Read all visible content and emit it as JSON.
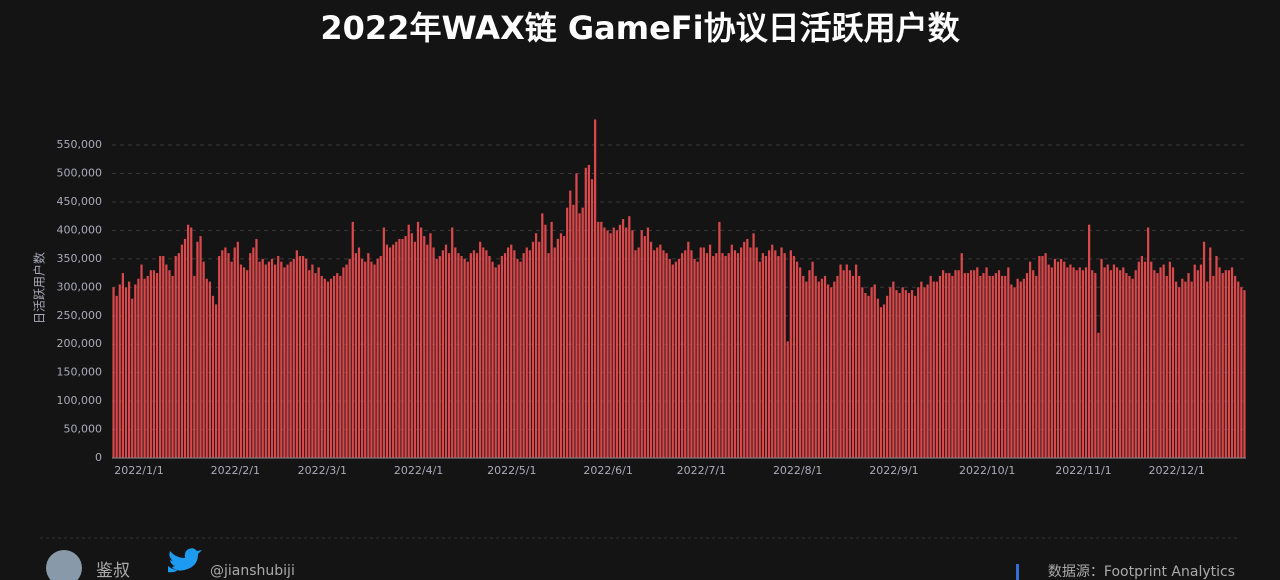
{
  "chart_data": {
    "type": "bar",
    "title": "2022年WAX链 GameFi协议日活跃用户数",
    "y_label": "日活跃用户数",
    "color": "#d9484b",
    "grid": true,
    "categories": [
      "2022/1/1",
      null,
      null,
      null,
      null,
      null,
      null,
      null,
      null,
      null,
      null,
      null,
      null,
      null,
      null,
      null,
      null,
      null,
      null,
      null,
      null,
      null,
      null,
      null,
      null,
      null,
      null,
      null,
      null,
      null,
      null,
      "2022/2/1",
      null,
      null,
      null,
      null,
      null,
      null,
      null,
      null,
      null,
      null,
      null,
      null,
      null,
      null,
      null,
      null,
      null,
      null,
      null,
      null,
      null,
      null,
      null,
      null,
      null,
      null,
      null,
      "2022/3/1",
      null,
      null,
      null,
      null,
      null,
      null,
      null,
      null,
      null,
      null,
      null,
      null,
      null,
      null,
      null,
      null,
      null,
      null,
      null,
      null,
      null,
      null,
      null,
      null,
      null,
      null,
      null,
      null,
      null,
      null,
      "2022/4/1",
      null,
      null,
      null,
      null,
      null,
      null,
      null,
      null,
      null,
      null,
      null,
      null,
      null,
      null,
      null,
      null,
      null,
      null,
      null,
      null,
      null,
      null,
      null,
      null,
      null,
      null,
      null,
      null,
      null,
      "2022/5/1",
      null,
      null,
      null,
      null,
      null,
      null,
      null,
      null,
      null,
      null,
      null,
      null,
      null,
      null,
      null,
      null,
      null,
      null,
      null,
      null,
      null,
      null,
      null,
      null,
      null,
      null,
      null,
      null,
      null,
      null,
      "2022/6/1",
      null,
      null,
      null,
      null,
      null,
      null,
      null,
      null,
      null,
      null,
      null,
      null,
      null,
      null,
      null,
      null,
      null,
      null,
      null,
      null,
      null,
      null,
      null,
      null,
      null,
      null,
      null,
      null,
      null,
      "2022/7/1",
      null,
      null,
      null,
      null,
      null,
      null,
      null,
      null,
      null,
      null,
      null,
      null,
      null,
      null,
      null,
      null,
      null,
      null,
      null,
      null,
      null,
      null,
      null,
      null,
      null,
      null,
      null,
      null,
      null,
      null,
      "2022/8/1",
      null,
      null,
      null,
      null,
      null,
      null,
      null,
      null,
      null,
      null,
      null,
      null,
      null,
      null,
      null,
      null,
      null,
      null,
      null,
      null,
      null,
      null,
      null,
      null,
      null,
      null,
      null,
      null,
      null,
      null,
      "2022/9/1",
      null,
      null,
      null,
      null,
      null,
      null,
      null,
      null,
      null,
      null,
      null,
      null,
      null,
      null,
      null,
      null,
      null,
      null,
      null,
      null,
      null,
      null,
      null,
      null,
      null,
      null,
      null,
      null,
      null,
      "2022/10/1",
      null,
      null,
      null,
      null,
      null,
      null,
      null,
      null,
      null,
      null,
      null,
      null,
      null,
      null,
      null,
      null,
      null,
      null,
      null,
      null,
      null,
      null,
      null,
      null,
      null,
      null,
      null,
      null,
      null,
      null,
      "2022/11/1",
      null,
      null,
      null,
      null,
      null,
      null,
      null,
      null,
      null,
      null,
      null,
      null,
      null,
      null,
      null,
      null,
      null,
      null,
      null,
      null,
      null,
      null,
      null,
      null,
      null,
      null,
      null,
      null,
      null,
      "2022/12/1",
      null,
      null,
      null,
      null,
      null,
      null,
      null,
      null,
      null,
      null,
      null,
      null,
      null,
      null,
      null,
      null,
      null,
      null,
      null,
      null,
      null,
      null,
      null,
      null,
      null,
      null,
      null,
      null,
      null,
      null
    ],
    "values": [
      300000,
      285000,
      305000,
      325000,
      300000,
      310000,
      280000,
      305000,
      315000,
      340000,
      315000,
      320000,
      330000,
      330000,
      325000,
      355000,
      355000,
      340000,
      330000,
      320000,
      355000,
      360000,
      375000,
      385000,
      410000,
      405000,
      320000,
      380000,
      390000,
      345000,
      315000,
      310000,
      285000,
      270000,
      355000,
      365000,
      370000,
      360000,
      345000,
      370000,
      380000,
      340000,
      335000,
      330000,
      360000,
      370000,
      385000,
      345000,
      350000,
      340000,
      345000,
      350000,
      340000,
      355000,
      345000,
      335000,
      340000,
      345000,
      350000,
      365000,
      355000,
      355000,
      350000,
      330000,
      340000,
      325000,
      335000,
      320000,
      315000,
      310000,
      315000,
      320000,
      325000,
      320000,
      335000,
      340000,
      350000,
      415000,
      360000,
      370000,
      350000,
      345000,
      360000,
      345000,
      340000,
      350000,
      355000,
      405000,
      375000,
      370000,
      375000,
      380000,
      385000,
      385000,
      390000,
      410000,
      395000,
      380000,
      415000,
      405000,
      390000,
      375000,
      395000,
      370000,
      350000,
      355000,
      365000,
      375000,
      360000,
      405000,
      370000,
      360000,
      355000,
      350000,
      345000,
      360000,
      365000,
      360000,
      380000,
      370000,
      365000,
      355000,
      345000,
      335000,
      340000,
      355000,
      360000,
      370000,
      375000,
      365000,
      350000,
      345000,
      360000,
      370000,
      365000,
      380000,
      395000,
      380000,
      430000,
      410000,
      360000,
      415000,
      370000,
      385000,
      395000,
      390000,
      440000,
      470000,
      445000,
      500000,
      430000,
      440000,
      510000,
      515000,
      490000,
      595000,
      415000,
      415000,
      405000,
      400000,
      395000,
      405000,
      400000,
      410000,
      420000,
      405000,
      425000,
      400000,
      365000,
      370000,
      400000,
      390000,
      405000,
      380000,
      365000,
      370000,
      375000,
      365000,
      360000,
      350000,
      340000,
      345000,
      350000,
      360000,
      365000,
      380000,
      365000,
      350000,
      345000,
      370000,
      370000,
      360000,
      375000,
      355000,
      360000,
      415000,
      360000,
      355000,
      360000,
      375000,
      365000,
      360000,
      370000,
      380000,
      385000,
      370000,
      395000,
      370000,
      345000,
      360000,
      355000,
      365000,
      375000,
      365000,
      355000,
      370000,
      360000,
      205000,
      365000,
      355000,
      345000,
      335000,
      320000,
      310000,
      330000,
      345000,
      320000,
      310000,
      315000,
      320000,
      305000,
      300000,
      310000,
      320000,
      340000,
      330000,
      340000,
      330000,
      320000,
      340000,
      320000,
      300000,
      290000,
      285000,
      300000,
      305000,
      280000,
      265000,
      270000,
      285000,
      300000,
      310000,
      295000,
      290000,
      300000,
      295000,
      290000,
      295000,
      285000,
      300000,
      310000,
      300000,
      305000,
      320000,
      310000,
      310000,
      320000,
      330000,
      325000,
      325000,
      320000,
      330000,
      330000,
      360000,
      325000,
      325000,
      330000,
      330000,
      335000,
      320000,
      325000,
      335000,
      320000,
      320000,
      325000,
      330000,
      320000,
      320000,
      335000,
      305000,
      300000,
      315000,
      310000,
      315000,
      325000,
      345000,
      330000,
      320000,
      355000,
      355000,
      360000,
      340000,
      335000,
      350000,
      345000,
      350000,
      345000,
      335000,
      340000,
      335000,
      330000,
      335000,
      330000,
      335000,
      410000,
      330000,
      325000,
      220000,
      350000,
      335000,
      340000,
      330000,
      340000,
      335000,
      330000,
      335000,
      325000,
      320000,
      315000,
      330000,
      345000,
      355000,
      345000,
      405000,
      345000,
      330000,
      325000,
      335000,
      340000,
      320000,
      345000,
      335000,
      310000,
      300000,
      315000,
      310000,
      325000,
      310000,
      340000,
      330000,
      340000,
      380000,
      310000,
      370000,
      320000,
      355000,
      335000,
      325000,
      330000,
      330000,
      335000,
      320000,
      310000,
      300000,
      295000
    ],
    "ylim": [
      0,
      600000
    ],
    "yticks": [
      0,
      {
        "value": 50000,
        "label": "50,000"
      },
      {
        "value": 100000,
        "label": "100,000"
      },
      {
        "value": 150000,
        "label": "150,000"
      },
      {
        "value": 200000,
        "label": "200,000"
      },
      {
        "value": 250000,
        "label": "250,000"
      },
      {
        "value": 300000,
        "label": "300,000"
      },
      {
        "value": 350000,
        "label": "350,000"
      },
      {
        "value": 400000,
        "label": "400,000"
      },
      {
        "value": 450000,
        "label": "450,000"
      },
      {
        "value": 500000,
        "label": "500,000"
      },
      {
        "value": 550000,
        "label": "550,000"
      }
    ]
  },
  "footer": {
    "author": "鉴叔",
    "twitter": "@jianshubiji",
    "source": "数据源：Footprint Analytics"
  }
}
